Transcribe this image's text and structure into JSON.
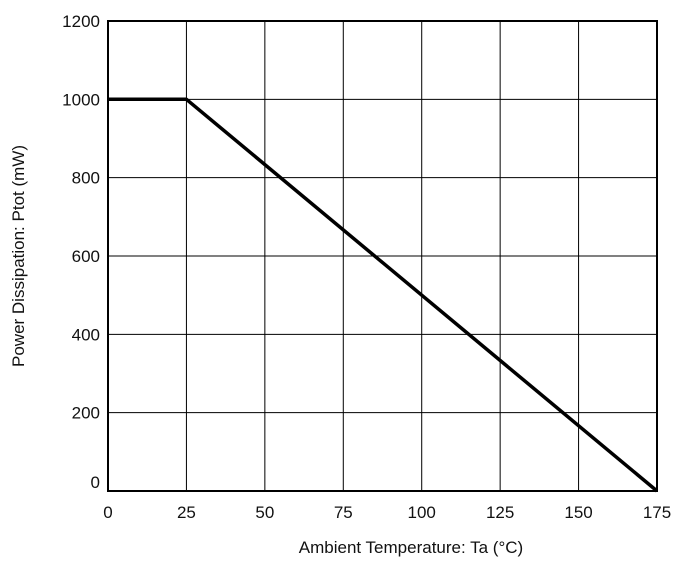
{
  "chart_data": {
    "type": "line",
    "title": "",
    "xlabel": "Ambient Temperature: Ta (°C)",
    "ylabel": "Power Dissipation: Ptot (mW)",
    "xlim": [
      0,
      175
    ],
    "ylim": [
      0,
      1200
    ],
    "xticks": [
      0,
      25,
      50,
      75,
      100,
      125,
      150,
      175
    ],
    "yticks": [
      0,
      200,
      400,
      600,
      800,
      1000,
      1200
    ],
    "xtick_labels": [
      "0",
      "25",
      "50",
      "75",
      "100",
      "125",
      "150",
      "175"
    ],
    "ytick_labels": [
      "0",
      "200",
      "400",
      "600",
      "800",
      "1000",
      "1200"
    ],
    "grid": true,
    "legend": "none",
    "series": [
      {
        "x": [
          0,
          25,
          175
        ],
        "y": [
          1000,
          1000,
          0
        ],
        "color": "#000000"
      }
    ]
  }
}
